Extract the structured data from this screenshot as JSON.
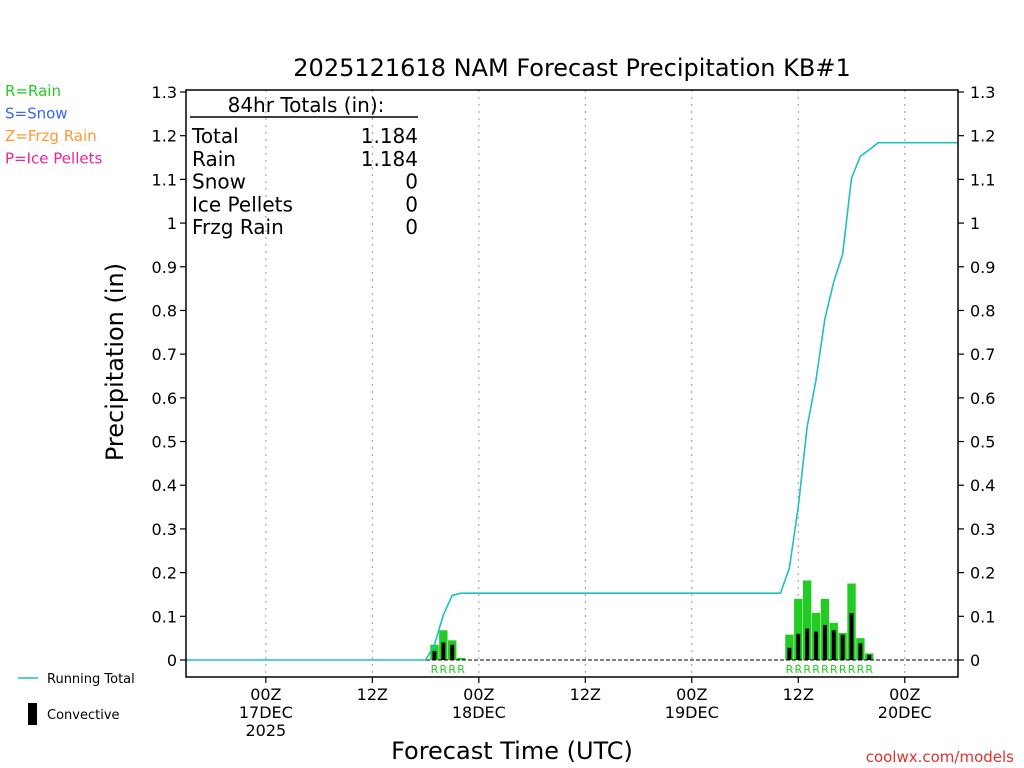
{
  "chart_data": {
    "type": "bar",
    "title": "2025121618 NAM Forecast Precipitation KB#1",
    "xlabel": "Forecast Time (UTC)",
    "ylabel": "Precipitation (in)",
    "ylim": [
      0,
      1.3
    ],
    "xlim_hours": [
      -3,
      84
    ],
    "yticks": [
      "0",
      "0.1",
      "0.2",
      "0.3",
      "0.4",
      "0.5",
      "0.6",
      "0.7",
      "0.8",
      "0.9",
      "1",
      "1.1",
      "1.2",
      "1.3"
    ],
    "xticks": [
      {
        "hour": 6,
        "lines": [
          "00Z",
          "17DEC",
          "2025"
        ]
      },
      {
        "hour": 18,
        "lines": [
          "12Z"
        ]
      },
      {
        "hour": 30,
        "lines": [
          "00Z",
          "18DEC"
        ]
      },
      {
        "hour": 42,
        "lines": [
          "12Z"
        ]
      },
      {
        "hour": 54,
        "lines": [
          "00Z",
          "19DEC"
        ]
      },
      {
        "hour": 66,
        "lines": [
          "12Z"
        ]
      },
      {
        "hour": 78,
        "lines": [
          "00Z",
          "20DEC"
        ]
      }
    ],
    "totals_box": {
      "header": "84hr Totals (in):",
      "rows": [
        {
          "label": "Total",
          "value": "1.184"
        },
        {
          "label": "Rain",
          "value": "1.184"
        },
        {
          "label": "Snow",
          "value": "0"
        },
        {
          "label": "Ice Pellets",
          "value": "0"
        },
        {
          "label": "Frzg Rain",
          "value": "0"
        }
      ]
    },
    "precip_type_legend": [
      {
        "text": "R=Rain",
        "color": "#22cc22"
      },
      {
        "text": "S=Snow",
        "color": "#3366ff"
      },
      {
        "text": "Z=Frzg Rain",
        "color": "#ff9933"
      },
      {
        "text": "P=Ice Pellets",
        "color": "#ee2299"
      }
    ],
    "series_legend": [
      {
        "text": "Running Total",
        "kind": "line",
        "color": "#20c0c0"
      },
      {
        "text": "Convective",
        "kind": "bar",
        "color": "#000000"
      }
    ],
    "bars": [
      {
        "hour": 25,
        "total": 0.035,
        "convective": 0.02,
        "type": "R"
      },
      {
        "hour": 26,
        "total": 0.068,
        "convective": 0.04,
        "type": "R"
      },
      {
        "hour": 27,
        "total": 0.045,
        "convective": 0.035,
        "type": "R"
      },
      {
        "hour": 28,
        "total": 0.005,
        "convective": 0.0,
        "type": "R"
      },
      {
        "hour": 65,
        "total": 0.058,
        "convective": 0.028,
        "type": "R"
      },
      {
        "hour": 66,
        "total": 0.14,
        "convective": 0.06,
        "type": "R"
      },
      {
        "hour": 67,
        "total": 0.182,
        "convective": 0.072,
        "type": "R"
      },
      {
        "hour": 68,
        "total": 0.108,
        "convective": 0.065,
        "type": "R"
      },
      {
        "hour": 69,
        "total": 0.14,
        "convective": 0.08,
        "type": "R"
      },
      {
        "hour": 70,
        "total": 0.085,
        "convective": 0.068,
        "type": "R"
      },
      {
        "hour": 71,
        "total": 0.062,
        "convective": 0.058,
        "type": "R"
      },
      {
        "hour": 72,
        "total": 0.175,
        "convective": 0.107,
        "type": "R"
      },
      {
        "hour": 73,
        "total": 0.05,
        "convective": 0.038,
        "type": "R"
      },
      {
        "hour": 74,
        "total": 0.015,
        "convective": 0.012,
        "type": "R"
      }
    ],
    "running_total": [
      [
        -3,
        0
      ],
      [
        24,
        0
      ],
      [
        25,
        0.035
      ],
      [
        26,
        0.103
      ],
      [
        27,
        0.148
      ],
      [
        28,
        0.153
      ],
      [
        64,
        0.153
      ],
      [
        65,
        0.211
      ],
      [
        66,
        0.351
      ],
      [
        67,
        0.533
      ],
      [
        68,
        0.641
      ],
      [
        69,
        0.781
      ],
      [
        70,
        0.866
      ],
      [
        71,
        0.928
      ],
      [
        72,
        1.103
      ],
      [
        73,
        1.153
      ],
      [
        74,
        1.168
      ],
      [
        75,
        1.184
      ],
      [
        84,
        1.184
      ]
    ],
    "watermark": "coolwx.com/models"
  }
}
